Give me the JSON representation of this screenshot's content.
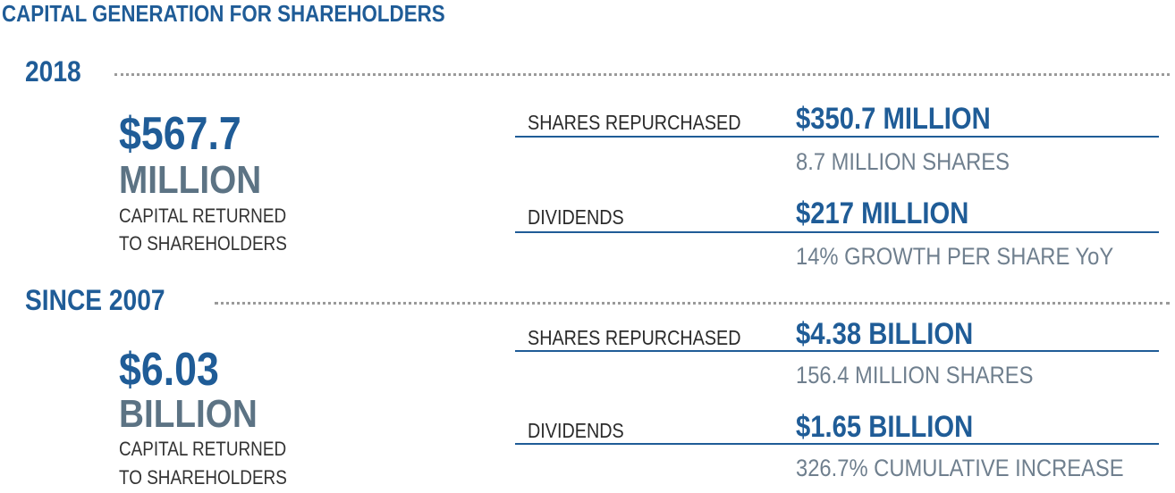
{
  "title": "CAPITAL GENERATION FOR SHAREHOLDERS",
  "sections": [
    {
      "heading": "2018",
      "total_amount": "$567.7",
      "total_unit": "MILLION",
      "caption_line1": "CAPITAL RETURNED",
      "caption_line2": "TO SHAREHOLDERS",
      "rows": [
        {
          "label": "SHARES REPURCHASED",
          "value": "$350.7 MILLION",
          "note": "8.7 MILLION SHARES"
        },
        {
          "label": "DIVIDENDS",
          "value": "$217 MILLION",
          "note": "14% GROWTH PER SHARE YoY"
        }
      ]
    },
    {
      "heading": "SINCE 2007",
      "total_amount": "$6.03",
      "total_unit": "BILLION",
      "caption_line1": "CAPITAL RETURNED",
      "caption_line2": "TO SHAREHOLDERS",
      "rows": [
        {
          "label": "SHARES REPURCHASED",
          "value": "$4.38 BILLION",
          "note": "156.4 MILLION SHARES"
        },
        {
          "label": "DIVIDENDS",
          "value": "$1.65 BILLION",
          "note": "326.7% CUMULATIVE INCREASE"
        }
      ]
    }
  ],
  "colors": {
    "primary_blue": "#1f5c97",
    "slate_gray": "#5c7384",
    "note_gray": "#6f7f8e",
    "dotted_gray": "#9a9a9a"
  }
}
